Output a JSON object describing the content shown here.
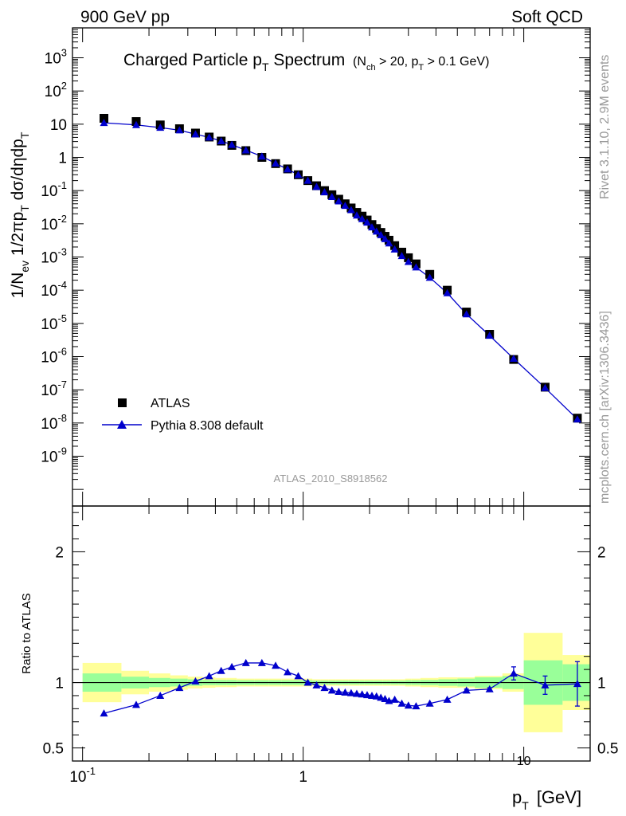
{
  "header": {
    "left": "900 GeV pp",
    "right": "Soft QCD"
  },
  "side_labels": {
    "rivet": "Rivet 3.1.10,  2.9M events",
    "mcplots": "mcplots.cern.ch [arXiv:1306.3436]"
  },
  "colors": {
    "mc": "#0000cc",
    "data": "#000000",
    "band_yellow": "#ffff99",
    "band_green": "#99ff99",
    "watermark": "#999999"
  },
  "chart_data": [
    {
      "type": "scatter",
      "title_main": "Charged Particle p",
      "title_main_sub": "T",
      "title_main_tail": " Spectrum",
      "title_cut": "(N",
      "title_cut_sub1": "ch",
      "title_cut_mid": " > 20, p",
      "title_cut_sub2": "T",
      "title_cut_tail": " > 0.1 GeV)",
      "ylabel_parts": [
        "1/N",
        "ev",
        " 1/2πp",
        "T",
        " dσ/dηdp",
        "T"
      ],
      "xlim": [
        0.09,
        20
      ],
      "ylim_log10": [
        -10.5,
        3.9
      ],
      "y_scale": "log",
      "x_scale": "log",
      "yticks": [
        {
          "exp": 3,
          "label": "10",
          "sup": "3"
        },
        {
          "exp": 2,
          "label": "10",
          "sup": "2"
        },
        {
          "exp": 1,
          "label": "10",
          "sup": ""
        },
        {
          "exp": 0,
          "label": "1",
          "sup": ""
        },
        {
          "exp": -1,
          "label": "10",
          "sup": "-1"
        },
        {
          "exp": -2,
          "label": "10",
          "sup": "-2"
        },
        {
          "exp": -3,
          "label": "10",
          "sup": "-3"
        },
        {
          "exp": -4,
          "label": "10",
          "sup": "-4"
        },
        {
          "exp": -5,
          "label": "10",
          "sup": "-5"
        },
        {
          "exp": -6,
          "label": "10",
          "sup": "-6"
        },
        {
          "exp": -7,
          "label": "10",
          "sup": "-7"
        },
        {
          "exp": -8,
          "label": "10",
          "sup": "-8"
        },
        {
          "exp": -9,
          "label": "10",
          "sup": "-9"
        }
      ],
      "legend": {
        "placement": "bottom-left",
        "entries": [
          "ATLAS",
          "Pythia 8.308 default"
        ]
      },
      "watermark": "ATLAS_2010_S8918562",
      "series": [
        {
          "name": "ATLAS",
          "marker": "square",
          "x": [
            0.125,
            0.175,
            0.225,
            0.275,
            0.325,
            0.375,
            0.425,
            0.475,
            0.55,
            0.65,
            0.75,
            0.85,
            0.95,
            1.05,
            1.15,
            1.25,
            1.35,
            1.45,
            1.55,
            1.65,
            1.75,
            1.85,
            1.95,
            2.05,
            2.15,
            2.25,
            2.35,
            2.45,
            2.6,
            2.8,
            3.0,
            3.25,
            3.75,
            4.5,
            5.5,
            7.0,
            9.0,
            12.5,
            17.5
          ],
          "y": [
            15.0,
            12.0,
            9.5,
            7.3,
            5.4,
            4.1,
            3.1,
            2.3,
            1.6,
            1.0,
            0.65,
            0.45,
            0.3,
            0.2,
            0.14,
            0.1,
            0.075,
            0.055,
            0.04,
            0.03,
            0.022,
            0.017,
            0.013,
            0.0095,
            0.0072,
            0.0055,
            0.0042,
            0.0032,
            0.0022,
            0.0014,
            0.00095,
            0.00062,
            0.0003,
            0.0001,
            2.2e-05,
            4.7e-06,
            8.2e-07,
            1.2e-07,
            1.4e-08
          ]
        },
        {
          "name": "Pythia 8.308 default",
          "marker": "triangle",
          "x": [
            0.125,
            0.175,
            0.225,
            0.275,
            0.325,
            0.375,
            0.425,
            0.475,
            0.55,
            0.65,
            0.75,
            0.85,
            0.95,
            1.05,
            1.15,
            1.25,
            1.35,
            1.45,
            1.55,
            1.65,
            1.75,
            1.85,
            1.95,
            2.05,
            2.15,
            2.25,
            2.35,
            2.45,
            2.6,
            2.8,
            3.0,
            3.25,
            3.75,
            4.5,
            5.5,
            7.0,
            9.0,
            12.5,
            17.5
          ],
          "y": [
            11.0,
            9.5,
            7.9,
            6.6,
            5.0,
            4.0,
            3.1,
            2.4,
            1.65,
            1.07,
            0.66,
            0.44,
            0.3,
            0.2,
            0.13,
            0.09,
            0.065,
            0.048,
            0.035,
            0.026,
            0.018,
            0.014,
            0.011,
            0.0079,
            0.0059,
            0.0046,
            0.0035,
            0.0026,
            0.0017,
            0.00108,
            0.00072,
            0.00049,
            0.00024,
            8.2e-05,
            1.9e-05,
            4.3e-06,
            8.7e-07,
            1.14e-07,
            1.3e-08
          ]
        }
      ]
    },
    {
      "type": "scatter",
      "ylabel": "Ratio to ATLAS",
      "xlabel": "p",
      "xlabel_sub": "T",
      "xlabel_unit": "[GeV]",
      "xlim": [
        0.09,
        20
      ],
      "ylim": [
        0.4,
        2.35
      ],
      "xticks": [
        {
          "value": 0.1,
          "label": "10",
          "sup": "-1"
        },
        {
          "value": 1,
          "label": "1",
          "sup": ""
        },
        {
          "value": 10,
          "label": "10",
          "sup": ""
        }
      ],
      "yticks": [
        {
          "value": 0.5,
          "label": "0.5"
        },
        {
          "value": 1,
          "label": "1"
        },
        {
          "value": 2,
          "label": "2"
        }
      ],
      "reference_line": 1,
      "band_edges": [
        0.1,
        0.15,
        0.2,
        0.25,
        0.3,
        0.35,
        0.4,
        0.45,
        0.5,
        0.6,
        0.7,
        0.8,
        0.9,
        1.0,
        1.1,
        1.2,
        1.3,
        1.4,
        1.5,
        1.6,
        1.7,
        1.8,
        1.9,
        2.0,
        2.1,
        2.2,
        2.3,
        2.4,
        2.5,
        2.7,
        2.9,
        3.1,
        3.4,
        4.1,
        5.0,
        6.0,
        8.0,
        10.0,
        15.0,
        20.0
      ],
      "band_yellow_halfwidth": [
        0.15,
        0.09,
        0.07,
        0.055,
        0.045,
        0.04,
        0.035,
        0.035,
        0.03,
        0.03,
        0.03,
        0.03,
        0.03,
        0.03,
        0.025,
        0.025,
        0.025,
        0.025,
        0.025,
        0.025,
        0.025,
        0.025,
        0.025,
        0.025,
        0.025,
        0.025,
        0.025,
        0.025,
        0.025,
        0.025,
        0.03,
        0.03,
        0.035,
        0.04,
        0.04,
        0.05,
        0.07,
        0.38,
        0.21,
        0.49
      ],
      "band_green_halfwidth": [
        0.07,
        0.045,
        0.035,
        0.03,
        0.025,
        0.02,
        0.02,
        0.02,
        0.018,
        0.018,
        0.018,
        0.018,
        0.018,
        0.018,
        0.015,
        0.015,
        0.015,
        0.015,
        0.015,
        0.015,
        0.015,
        0.015,
        0.015,
        0.015,
        0.015,
        0.015,
        0.015,
        0.015,
        0.015,
        0.015,
        0.018,
        0.018,
        0.02,
        0.025,
        0.03,
        0.04,
        0.05,
        0.17,
        0.14,
        0.2
      ],
      "series": [
        {
          "name": "Pythia 8.308 default",
          "marker": "triangle",
          "x": [
            0.125,
            0.175,
            0.225,
            0.275,
            0.325,
            0.375,
            0.425,
            0.475,
            0.55,
            0.65,
            0.75,
            0.85,
            0.95,
            1.05,
            1.15,
            1.25,
            1.35,
            1.45,
            1.55,
            1.65,
            1.75,
            1.85,
            1.95,
            2.05,
            2.15,
            2.25,
            2.35,
            2.45,
            2.6,
            2.8,
            3.0,
            3.25,
            3.75,
            4.5,
            5.5,
            7.0,
            9.0,
            12.5,
            17.5
          ],
          "y": [
            0.765,
            0.83,
            0.9,
            0.96,
            1.01,
            1.05,
            1.09,
            1.12,
            1.15,
            1.15,
            1.13,
            1.08,
            1.05,
            1.0,
            0.98,
            0.96,
            0.94,
            0.93,
            0.925,
            0.92,
            0.915,
            0.91,
            0.905,
            0.9,
            0.895,
            0.885,
            0.875,
            0.86,
            0.87,
            0.84,
            0.825,
            0.82,
            0.84,
            0.87,
            0.94,
            0.95,
            1.07,
            0.98,
            0.99
          ],
          "yerr": [
            0,
            0,
            0,
            0,
            0,
            0,
            0,
            0,
            0,
            0,
            0,
            0,
            0,
            0,
            0,
            0,
            0,
            0,
            0,
            0,
            0,
            0,
            0,
            0,
            0,
            0,
            0,
            0,
            0,
            0,
            0,
            0,
            0,
            0,
            0.01,
            0.01,
            0.05,
            0.07,
            0.17
          ]
        }
      ]
    }
  ]
}
